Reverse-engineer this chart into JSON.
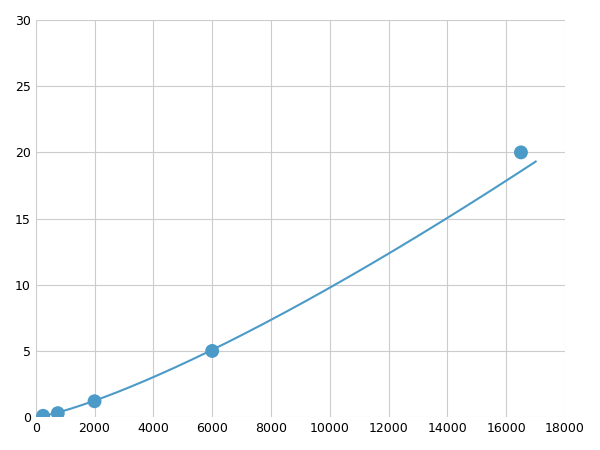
{
  "x_data": [
    250,
    750,
    2000,
    6000,
    16500
  ],
  "y_data": [
    0.1,
    0.3,
    1.2,
    5.0,
    20.0
  ],
  "line_color": "#4b9ac7",
  "marker_color": "#4b9ac7",
  "marker_size": 5,
  "line_width": 1.5,
  "xlim": [
    0,
    18000
  ],
  "ylim": [
    0,
    30
  ],
  "xticks": [
    0,
    2000,
    4000,
    6000,
    8000,
    10000,
    12000,
    14000,
    16000,
    18000
  ],
  "yticks": [
    0,
    5,
    10,
    15,
    20,
    25,
    30
  ],
  "grid_color": "#cccccc",
  "background_color": "#ffffff",
  "tick_fontsize": 9
}
